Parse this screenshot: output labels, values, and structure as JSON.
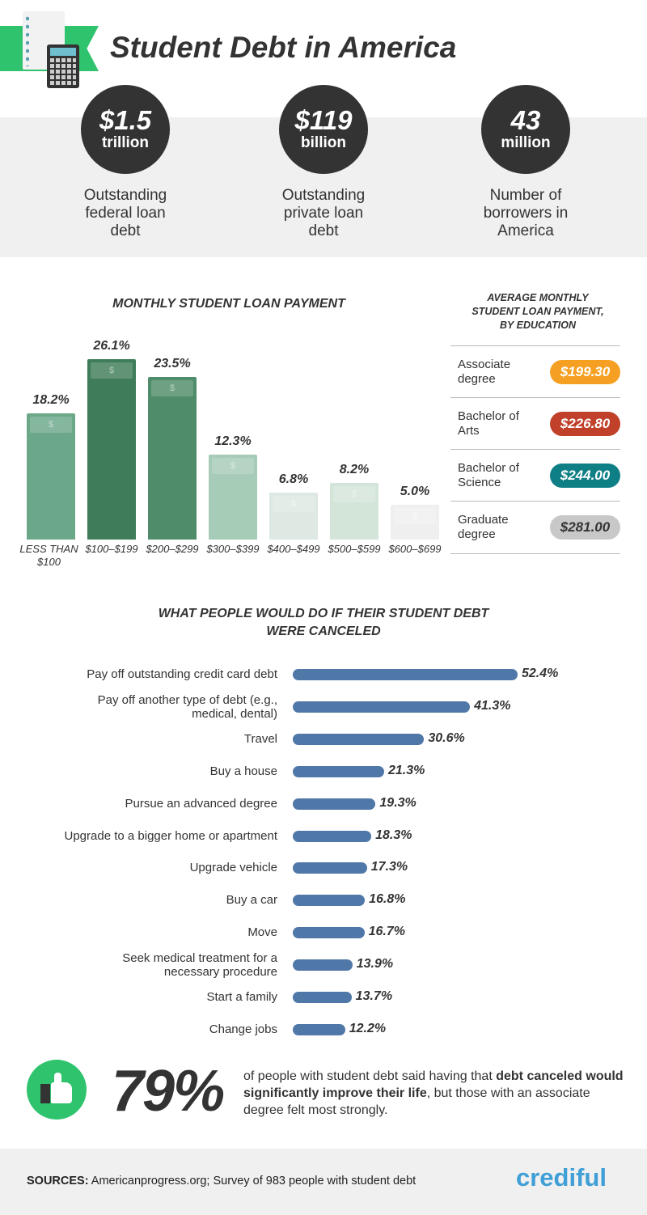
{
  "header": {
    "title": "Student Debt in America"
  },
  "stats": [
    {
      "value": "$1.5",
      "unit": "trillion",
      "description": "Outstanding federal loan debt"
    },
    {
      "value": "$119",
      "unit": "billion",
      "description": "Outstanding private loan debt"
    },
    {
      "value": "43",
      "unit": "million",
      "description": "Number of borrowers in America"
    }
  ],
  "chart_data": [
    {
      "type": "bar",
      "title": "MONTHLY STUDENT LOAN PAYMENT",
      "categories": [
        "LESS THAN $100",
        "$100–$199",
        "$200–$299",
        "$300–$399",
        "$400–$499",
        "$500–$599",
        "$600–$699"
      ],
      "values": [
        18.2,
        26.1,
        23.5,
        12.3,
        6.8,
        8.2,
        5.0
      ],
      "data_labels": [
        "18.2%",
        "26.1%",
        "23.5%",
        "12.3%",
        "6.8%",
        "8.2%",
        "5.0%"
      ],
      "colors": [
        "#6ba889",
        "#3f7d5a",
        "#4f8c69",
        "#a6cbb6",
        "#dde9e2",
        "#d3e5d9",
        "#efefef"
      ],
      "grid": false
    },
    {
      "type": "table",
      "title": "AVERAGE MONTHLY STUDENT LOAN PAYMENT, BY EDUCATION",
      "rows": [
        {
          "label": "Associate degree",
          "value": "$199.30",
          "color": "#f6a023"
        },
        {
          "label": "Bachelor of Arts",
          "value": "$226.80",
          "color": "#c0402a"
        },
        {
          "label": "Bachelor of Science",
          "value": "$244.00",
          "color": "#0f7f86"
        },
        {
          "label": "Graduate degree",
          "value": "$281.00",
          "color": "#c8c8c8"
        }
      ]
    },
    {
      "type": "bar",
      "orientation": "horizontal",
      "title": "WHAT PEOPLE WOULD DO IF THEIR STUDENT DEBT WERE CANCELED",
      "categories": [
        "Pay off outstanding credit card debt",
        "Pay off another type of debt (e.g., medical, dental)",
        "Travel",
        "Buy a house",
        "Pursue an advanced degree",
        "Upgrade to a bigger home or apartment",
        "Upgrade vehicle",
        "Buy a car",
        "Move",
        "Seek medical treatment for a necessary procedure",
        "Start a family",
        "Change jobs"
      ],
      "values": [
        52.4,
        41.3,
        30.6,
        21.3,
        19.3,
        18.3,
        17.3,
        16.8,
        16.7,
        13.9,
        13.7,
        12.2
      ],
      "data_labels": [
        "52.4%",
        "41.3%",
        "30.6%",
        "21.3%",
        "19.3%",
        "18.3%",
        "17.3%",
        "16.8%",
        "16.7%",
        "13.9%",
        "13.7%",
        "12.2%"
      ],
      "color": "#4f77a8",
      "grid": false
    }
  ],
  "callout": {
    "value": "79%",
    "text_pre": "of people with student debt said having that ",
    "text_bold": "debt canceled would significantly improve their life",
    "text_post": ", but those with an associate degree felt most strongly.",
    "icon": "thumbs-up-icon"
  },
  "footer": {
    "sources_label": "SOURCES:",
    "sources_text": " Americanprogress.org; Survey of 983 people with student debt",
    "brand": "crediful"
  },
  "colors": {
    "accent_green": "#2fc36e",
    "brand_blue": "#3f9fd6",
    "dark": "#333333"
  }
}
